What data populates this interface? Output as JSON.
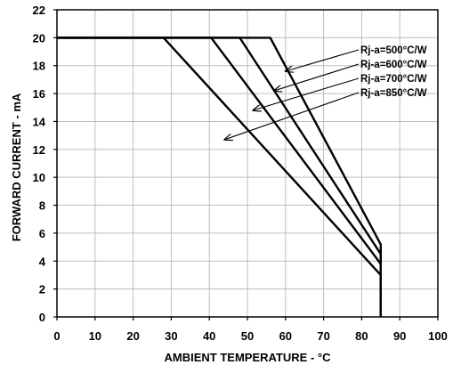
{
  "chart_data": {
    "type": "line",
    "title": "",
    "xlabel": "AMBIENT TEMPERATURE - °C",
    "ylabel": "FORWARD CURRENT - mA",
    "xlim": [
      0,
      100
    ],
    "ylim": [
      0,
      22
    ],
    "x_ticks": [
      "0",
      "10",
      "20",
      "30",
      "40",
      "50",
      "60",
      "70",
      "80",
      "90",
      "100"
    ],
    "y_ticks": [
      "0",
      "2",
      "4",
      "6",
      "8",
      "10",
      "12",
      "14",
      "16",
      "18",
      "20",
      "22"
    ],
    "grid": true,
    "line_color": "#000000",
    "grid_color": "#bdbdbd",
    "series": [
      {
        "name": "Rj-a=500°C/W",
        "x": [
          0,
          56,
          85,
          85
        ],
        "y": [
          20,
          20,
          5.2,
          0
        ]
      },
      {
        "name": "Rj-a=600°C/W",
        "x": [
          0,
          48,
          85,
          85
        ],
        "y": [
          20,
          20,
          4.5,
          0
        ]
      },
      {
        "name": "Rj-a=700°C/W",
        "x": [
          0,
          40.5,
          85,
          85
        ],
        "y": [
          20,
          20,
          3.8,
          0
        ]
      },
      {
        "name": "Rj-a=850°C/W",
        "x": [
          0,
          28,
          85,
          85
        ],
        "y": [
          20,
          20,
          3.0,
          0
        ]
      }
    ],
    "annotations": [
      {
        "text": "Rj-a=500°C/W",
        "arrow_to": [
          60,
          17.6
        ]
      },
      {
        "text": "Rj-a=600°C/W",
        "arrow_to": [
          57,
          16.2
        ]
      },
      {
        "text": "Rj-a=700°C/W",
        "arrow_to": [
          51.5,
          14.8
        ]
      },
      {
        "text": "Rj-a=850°C/W",
        "arrow_to": [
          44,
          12.7
        ]
      }
    ]
  }
}
